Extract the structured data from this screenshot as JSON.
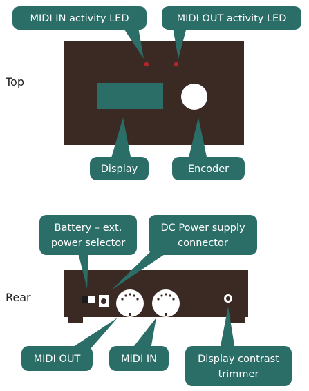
{
  "labels": {
    "top": "Top",
    "rear": "Rear"
  },
  "callouts": {
    "midi_in_led": "MIDI IN activity LED",
    "midi_out_led": "MIDI OUT activity LED",
    "display": "Display",
    "encoder": "Encoder",
    "battery_selector": [
      "Battery – ext.",
      "power selector"
    ],
    "dc_power": [
      "DC Power supply",
      "connector"
    ],
    "midi_out": "MIDI OUT",
    "midi_in": "MIDI IN",
    "contrast_trimmer": [
      "Display contrast",
      "trimmer"
    ]
  },
  "colors": {
    "callout": "#2b6e68",
    "device_body": "#3b2a24",
    "display": "#2b6e68",
    "led": "#b5262c"
  }
}
